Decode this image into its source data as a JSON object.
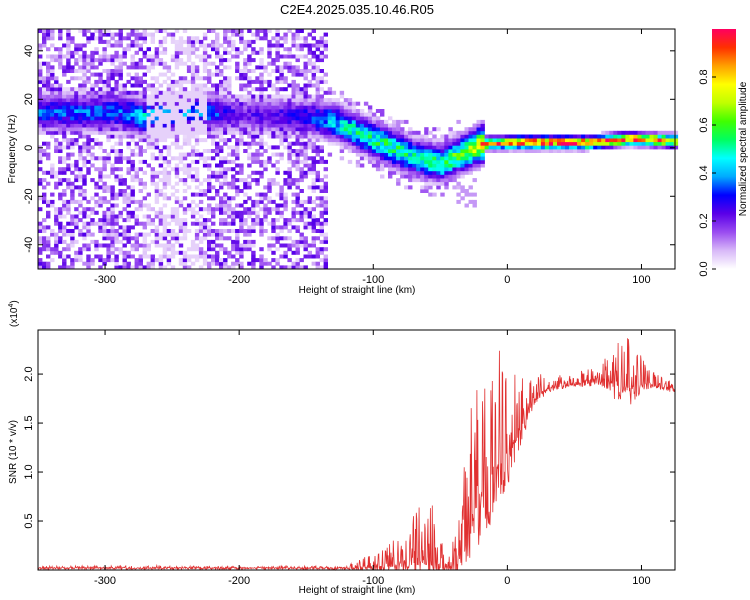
{
  "title": "C2E4.2025.035.10.46.R05",
  "chart_data": [
    {
      "type": "heatmap",
      "xlabel": "Height of straight line (km)",
      "ylabel": "Frequency (Hz)",
      "xlim": [
        -350,
        125
      ],
      "ylim": [
        -50,
        49
      ],
      "xticks": [
        -300,
        -200,
        -100,
        0,
        100
      ],
      "yticks": [
        -40,
        -20,
        0,
        20,
        40
      ],
      "colorbar": {
        "label": "Normalized spectral amplitude",
        "range": [
          0,
          1
        ],
        "ticks": [
          "0.0",
          "0.2",
          "0.4",
          "0.6",
          "0.8"
        ],
        "tick_values": [
          0,
          0.2,
          0.4,
          0.6,
          0.8
        ],
        "colors": [
          "#ffffff",
          "#d8b8f8",
          "#9a4cf0",
          "#5a00e8",
          "#0000ff",
          "#00aaff",
          "#00ffff",
          "#00ff60",
          "#40ff00",
          "#c0ff00",
          "#ffff00",
          "#ffa000",
          "#ff3000",
          "#ff0060"
        ]
      },
      "ridge": {
        "x": [
          -290,
          -270,
          -250,
          -230,
          -200,
          -150,
          -130,
          -110,
          -90,
          -70,
          -50,
          -35,
          -20,
          0,
          20,
          60,
          90,
          125
        ],
        "y": [
          14,
          12,
          13,
          14,
          13,
          12,
          10,
          5,
          0,
          -5,
          -7,
          -3,
          1,
          1.5,
          1.5,
          1.5,
          3,
          2
        ],
        "amp": [
          0.35,
          0.45,
          0.35,
          0.4,
          0.2,
          0.3,
          0.45,
          0.5,
          0.55,
          0.5,
          0.55,
          0.6,
          0.8,
          0.9,
          0.95,
          0.95,
          0.9,
          0.85
        ]
      }
    },
    {
      "type": "line",
      "xlabel": "Height of straight line (km)",
      "ylabel": "SNR (10 * v/v)",
      "y_multiplier": "(x10",
      "y_multiplier_exp": "4",
      "y_multiplier_close": ")",
      "xlim": [
        -350,
        125
      ],
      "ylim": [
        0,
        2.45
      ],
      "xticks": [
        -300,
        -200,
        -100,
        0,
        100
      ],
      "yticks": [
        0.5,
        1.0,
        1.5,
        2.0
      ],
      "ytick_labels": [
        "0.5",
        "1.0",
        "1.5",
        "2.0"
      ],
      "color": "#e03030",
      "envelope": {
        "x": [
          -350,
          -120,
          -105,
          -90,
          -75,
          -65,
          -58,
          -50,
          -42,
          -38,
          -30,
          -20,
          -10,
          0,
          10,
          20,
          30,
          50,
          70,
          80,
          90,
          100,
          110,
          125
        ],
        "base": [
          0.02,
          0.02,
          0.03,
          0.05,
          0.1,
          0.15,
          0.1,
          0.05,
          0.04,
          0.1,
          0.4,
          0.8,
          1.0,
          1.2,
          1.45,
          1.8,
          1.85,
          1.9,
          1.95,
          1.9,
          1.85,
          1.9,
          1.9,
          1.85
        ],
        "spike": [
          0.02,
          0.02,
          0.12,
          0.2,
          0.28,
          0.6,
          0.7,
          0.25,
          0.1,
          0.5,
          1.0,
          1.5,
          1.3,
          1.0,
          0.5,
          0.3,
          0.12,
          0.1,
          0.2,
          0.45,
          0.55,
          0.3,
          0.1,
          0.1
        ]
      }
    }
  ]
}
